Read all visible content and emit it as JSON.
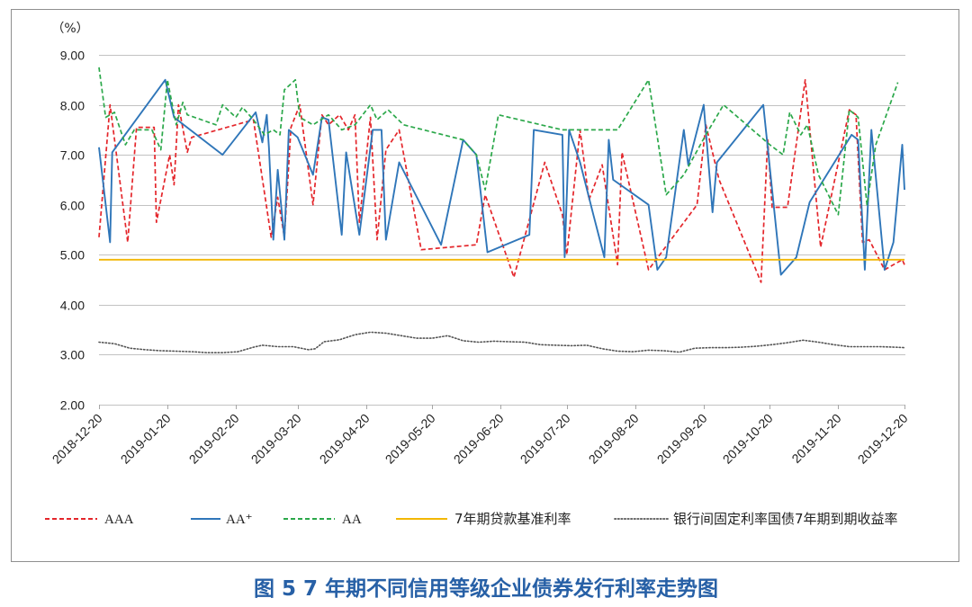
{
  "chart_data": {
    "type": "line",
    "title": "图 5 7 年期不同信用等级企业债券发行利率走势图",
    "ylabel": "（%）",
    "ylim": [
      2,
      9
    ],
    "xlim": [
      "2018-12-20",
      "2019-12-20"
    ],
    "y_ticks": [
      "2.00",
      "3.00",
      "4.00",
      "5.00",
      "6.00",
      "7.00",
      "8.00",
      "9.00"
    ],
    "x_ticks": [
      "2018-12-20",
      "2019-01-20",
      "2019-02-20",
      "2019-03-20",
      "2019-04-20",
      "2019-05-20",
      "2019-06-20",
      "2019-07-20",
      "2019-08-20",
      "2019-09-20",
      "2019-10-20",
      "2019-11-20",
      "2019-12-20"
    ],
    "grid": "horizontal",
    "legend_position": "bottom",
    "series": [
      {
        "name": "AAA",
        "color": "#e4262b",
        "line_style": "dashed",
        "points": [
          [
            "2018-12-20",
            5.35
          ],
          [
            "2018-12-25",
            8.0
          ],
          [
            "2019-01-02",
            5.25
          ],
          [
            "2019-01-06",
            7.55
          ],
          [
            "2019-01-14",
            7.55
          ],
          [
            "2019-01-15",
            5.65
          ],
          [
            "2019-01-21",
            7.0
          ],
          [
            "2019-01-23",
            6.4
          ],
          [
            "2019-01-25",
            8.0
          ],
          [
            "2019-01-29",
            7.05
          ],
          [
            "2019-01-31",
            7.35
          ],
          [
            "2019-02-28",
            7.7
          ],
          [
            "2019-03-08",
            5.35
          ],
          [
            "2019-03-11",
            6.15
          ],
          [
            "2019-03-14",
            5.35
          ],
          [
            "2019-03-17",
            7.55
          ],
          [
            "2019-03-21",
            8.0
          ],
          [
            "2019-03-27",
            6.0
          ],
          [
            "2019-03-31",
            7.8
          ],
          [
            "2019-04-03",
            7.6
          ],
          [
            "2019-04-08",
            7.8
          ],
          [
            "2019-04-12",
            7.5
          ],
          [
            "2019-04-15",
            7.8
          ],
          [
            "2019-04-17",
            5.65
          ],
          [
            "2019-04-22",
            7.75
          ],
          [
            "2019-04-25",
            5.3
          ],
          [
            "2019-04-29",
            7.1
          ],
          [
            "2019-05-05",
            7.5
          ],
          [
            "2019-05-15",
            5.1
          ],
          [
            "2019-06-09",
            5.2
          ],
          [
            "2019-06-13",
            6.2
          ],
          [
            "2019-06-26",
            4.55
          ],
          [
            "2019-07-10",
            6.85
          ],
          [
            "2019-07-18",
            5.8
          ],
          [
            "2019-07-20",
            5.0
          ],
          [
            "2019-07-26",
            7.5
          ],
          [
            "2019-07-30",
            6.1
          ],
          [
            "2019-08-05",
            6.8
          ],
          [
            "2019-08-12",
            4.8
          ],
          [
            "2019-08-14",
            7.05
          ],
          [
            "2019-08-26",
            4.7
          ],
          [
            "2019-09-17",
            6.0
          ],
          [
            "2019-09-21",
            7.6
          ],
          [
            "2019-09-27",
            6.5
          ],
          [
            "2019-10-16",
            4.45
          ],
          [
            "2019-10-19",
            7.3
          ],
          [
            "2019-10-21",
            5.95
          ],
          [
            "2019-10-28",
            5.95
          ],
          [
            "2019-11-05",
            8.5
          ],
          [
            "2019-11-12",
            5.15
          ],
          [
            "2019-11-25",
            7.9
          ],
          [
            "2019-11-28",
            7.8
          ],
          [
            "2019-12-01",
            5.25
          ],
          [
            "2019-12-04",
            5.3
          ],
          [
            "2019-12-11",
            4.7
          ],
          [
            "2019-12-19",
            4.9
          ],
          [
            "2019-12-20",
            4.8
          ]
        ]
      },
      {
        "name": "AA⁺",
        "color": "#2f76b9",
        "line_style": "solid",
        "points": [
          [
            "2018-12-20",
            7.15
          ],
          [
            "2018-12-25",
            5.25
          ],
          [
            "2018-12-26",
            7.05
          ],
          [
            "2019-01-19",
            8.5
          ],
          [
            "2019-01-23",
            7.75
          ],
          [
            "2019-02-14",
            7.0
          ],
          [
            "2019-03-01",
            7.85
          ],
          [
            "2019-03-04",
            7.25
          ],
          [
            "2019-03-06",
            7.8
          ],
          [
            "2019-03-07",
            7.15
          ],
          [
            "2019-03-09",
            5.3
          ],
          [
            "2019-03-11",
            6.7
          ],
          [
            "2019-03-14",
            5.3
          ],
          [
            "2019-03-16",
            7.5
          ],
          [
            "2019-03-20",
            7.35
          ],
          [
            "2019-03-27",
            6.6
          ],
          [
            "2019-03-31",
            7.75
          ],
          [
            "2019-04-03",
            7.7
          ],
          [
            "2019-04-09",
            5.4
          ],
          [
            "2019-04-11",
            7.05
          ],
          [
            "2019-04-17",
            5.4
          ],
          [
            "2019-04-23",
            7.5
          ],
          [
            "2019-04-27",
            7.5
          ],
          [
            "2019-04-29",
            5.3
          ],
          [
            "2019-05-05",
            6.85
          ],
          [
            "2019-05-24",
            5.2
          ],
          [
            "2019-06-03",
            7.3
          ],
          [
            "2019-06-09",
            7.0
          ],
          [
            "2019-06-14",
            5.05
          ],
          [
            "2019-07-03",
            5.4
          ],
          [
            "2019-07-05",
            7.5
          ],
          [
            "2019-07-18",
            7.4
          ],
          [
            "2019-07-19",
            4.95
          ],
          [
            "2019-07-21",
            7.5
          ],
          [
            "2019-07-26",
            6.85
          ],
          [
            "2019-08-01",
            5.8
          ],
          [
            "2019-08-06",
            4.95
          ],
          [
            "2019-08-08",
            7.3
          ],
          [
            "2019-08-10",
            6.5
          ],
          [
            "2019-08-26",
            6.0
          ],
          [
            "2019-08-30",
            4.7
          ],
          [
            "2019-09-03",
            4.95
          ],
          [
            "2019-09-11",
            7.5
          ],
          [
            "2019-09-13",
            6.8
          ],
          [
            "2019-09-20",
            8.0
          ],
          [
            "2019-09-24",
            5.85
          ],
          [
            "2019-09-26",
            6.85
          ],
          [
            "2019-10-17",
            8.0
          ],
          [
            "2019-10-25",
            4.6
          ],
          [
            "2019-11-01",
            4.95
          ],
          [
            "2019-11-04",
            5.5
          ],
          [
            "2019-11-07",
            6.05
          ],
          [
            "2019-11-26",
            7.4
          ],
          [
            "2019-11-29",
            7.3
          ],
          [
            "2019-12-02",
            4.7
          ],
          [
            "2019-12-05",
            7.5
          ],
          [
            "2019-12-11",
            4.7
          ],
          [
            "2019-12-15",
            5.25
          ],
          [
            "2019-12-19",
            7.2
          ],
          [
            "2019-12-20",
            6.3
          ]
        ]
      },
      {
        "name": "AA",
        "color": "#2ba84a",
        "line_style": "dashed",
        "points": [
          [
            "2018-12-20",
            8.75
          ],
          [
            "2018-12-23",
            7.75
          ],
          [
            "2018-12-27",
            7.85
          ],
          [
            "2019-01-01",
            7.2
          ],
          [
            "2019-01-05",
            7.5
          ],
          [
            "2019-01-13",
            7.5
          ],
          [
            "2019-01-17",
            7.1
          ],
          [
            "2019-01-20",
            8.5
          ],
          [
            "2019-01-24",
            7.6
          ],
          [
            "2019-01-27",
            8.05
          ],
          [
            "2019-01-29",
            7.8
          ],
          [
            "2019-02-11",
            7.6
          ],
          [
            "2019-02-14",
            8.0
          ],
          [
            "2019-02-20",
            7.75
          ],
          [
            "2019-02-23",
            7.95
          ],
          [
            "2019-02-28",
            7.7
          ],
          [
            "2019-03-05",
            7.4
          ],
          [
            "2019-03-09",
            7.5
          ],
          [
            "2019-03-12",
            7.4
          ],
          [
            "2019-03-14",
            8.3
          ],
          [
            "2019-03-19",
            8.5
          ],
          [
            "2019-03-21",
            7.75
          ],
          [
            "2019-03-27",
            7.6
          ],
          [
            "2019-04-03",
            7.8
          ],
          [
            "2019-04-09",
            7.5
          ],
          [
            "2019-04-15",
            7.6
          ],
          [
            "2019-04-22",
            8.0
          ],
          [
            "2019-04-25",
            7.7
          ],
          [
            "2019-04-30",
            7.9
          ],
          [
            "2019-05-07",
            7.6
          ],
          [
            "2019-06-03",
            7.3
          ],
          [
            "2019-06-09",
            7.0
          ],
          [
            "2019-06-13",
            6.3
          ],
          [
            "2019-06-19",
            7.8
          ],
          [
            "2019-07-18",
            7.5
          ],
          [
            "2019-08-12",
            7.5
          ],
          [
            "2019-08-26",
            8.5
          ],
          [
            "2019-09-03",
            6.2
          ],
          [
            "2019-09-11",
            6.6
          ],
          [
            "2019-09-21",
            7.4
          ],
          [
            "2019-09-29",
            8.0
          ],
          [
            "2019-10-20",
            7.2
          ],
          [
            "2019-10-26",
            7.0
          ],
          [
            "2019-10-29",
            7.85
          ],
          [
            "2019-11-03",
            7.4
          ],
          [
            "2019-11-06",
            7.6
          ],
          [
            "2019-11-11",
            6.6
          ],
          [
            "2019-11-20",
            5.8
          ],
          [
            "2019-11-25",
            7.9
          ],
          [
            "2019-11-29",
            7.75
          ],
          [
            "2019-12-03",
            6.0
          ],
          [
            "2019-12-07",
            7.2
          ],
          [
            "2019-12-17",
            8.45
          ]
        ]
      },
      {
        "name": "7年期贷款基准利率",
        "color": "#f2b705",
        "line_style": "solid",
        "points": [
          [
            "2018-12-20",
            4.9
          ],
          [
            "2019-12-20",
            4.9
          ]
        ]
      },
      {
        "name": "银行间固定利率国债7年期到期收益率",
        "color": "#555555",
        "line_style": "dotted",
        "points": [
          [
            "2018-12-20",
            3.25
          ],
          [
            "2018-12-27",
            3.22
          ],
          [
            "2019-01-03",
            3.13
          ],
          [
            "2019-01-10",
            3.1
          ],
          [
            "2019-01-17",
            3.08
          ],
          [
            "2019-01-24",
            3.07
          ],
          [
            "2019-01-31",
            3.06
          ],
          [
            "2019-02-07",
            3.04
          ],
          [
            "2019-02-14",
            3.04
          ],
          [
            "2019-02-21",
            3.06
          ],
          [
            "2019-02-28",
            3.15
          ],
          [
            "2019-03-04",
            3.19
          ],
          [
            "2019-03-11",
            3.16
          ],
          [
            "2019-03-18",
            3.16
          ],
          [
            "2019-03-25",
            3.1
          ],
          [
            "2019-03-28",
            3.12
          ],
          [
            "2019-04-01",
            3.26
          ],
          [
            "2019-04-08",
            3.3
          ],
          [
            "2019-04-15",
            3.4
          ],
          [
            "2019-04-22",
            3.45
          ],
          [
            "2019-04-29",
            3.43
          ],
          [
            "2019-05-06",
            3.38
          ],
          [
            "2019-05-13",
            3.33
          ],
          [
            "2019-05-20",
            3.33
          ],
          [
            "2019-05-27",
            3.38
          ],
          [
            "2019-06-03",
            3.28
          ],
          [
            "2019-06-10",
            3.25
          ],
          [
            "2019-06-17",
            3.27
          ],
          [
            "2019-06-24",
            3.26
          ],
          [
            "2019-07-01",
            3.25
          ],
          [
            "2019-07-08",
            3.2
          ],
          [
            "2019-07-15",
            3.19
          ],
          [
            "2019-07-22",
            3.18
          ],
          [
            "2019-07-29",
            3.19
          ],
          [
            "2019-08-05",
            3.12
          ],
          [
            "2019-08-12",
            3.07
          ],
          [
            "2019-08-19",
            3.06
          ],
          [
            "2019-08-26",
            3.09
          ],
          [
            "2019-09-02",
            3.08
          ],
          [
            "2019-09-09",
            3.05
          ],
          [
            "2019-09-16",
            3.13
          ],
          [
            "2019-09-23",
            3.14
          ],
          [
            "2019-09-30",
            3.14
          ],
          [
            "2019-10-07",
            3.15
          ],
          [
            "2019-10-14",
            3.17
          ],
          [
            "2019-10-21",
            3.2
          ],
          [
            "2019-10-28",
            3.24
          ],
          [
            "2019-11-04",
            3.29
          ],
          [
            "2019-11-11",
            3.25
          ],
          [
            "2019-11-18",
            3.2
          ],
          [
            "2019-11-25",
            3.16
          ],
          [
            "2019-12-02",
            3.16
          ],
          [
            "2019-12-09",
            3.16
          ],
          [
            "2019-12-16",
            3.15
          ],
          [
            "2019-12-20",
            3.14
          ]
        ]
      }
    ]
  }
}
